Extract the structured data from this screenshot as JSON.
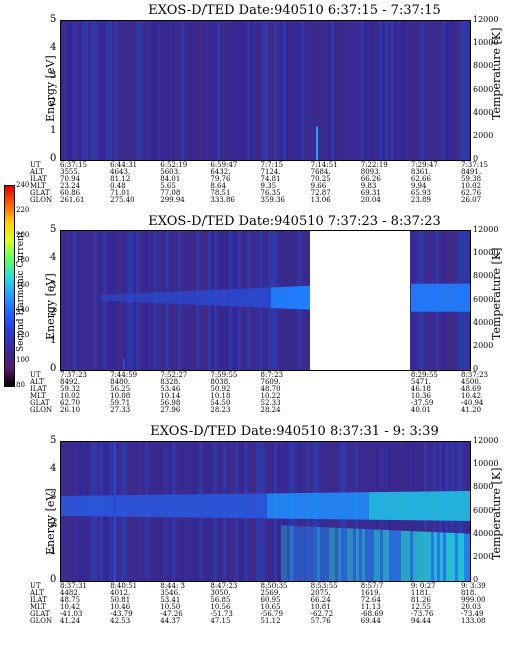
{
  "chart_data": [
    {
      "type": "heatmap",
      "title": "EXOS-D/TED  Date:940510  6:37:15 - 7:37:15",
      "ylabel": "Energy [eV]",
      "y2label": "Temperature [K]",
      "yticks": [
        "0",
        "1",
        "2",
        "3",
        "4",
        "5"
      ],
      "y2ticks": [
        "0",
        "2000",
        "4000",
        "6000",
        "8000",
        "10000",
        "12000"
      ],
      "ylim": [
        0,
        5
      ],
      "y2lim": [
        0,
        12000
      ],
      "band_center_ev": null,
      "table": {
        "labels": [
          "UT",
          "ALT",
          "ILAT",
          "MLT",
          "GLAT",
          "GLON"
        ],
        "columns": [
          [
            "6:37:15",
            "3555.",
            "70.94",
            "23.24",
            "60.86",
            "261.61"
          ],
          [
            "6:44:31",
            "4643.",
            "81.12",
            "0.48",
            "71.01",
            "275.40"
          ],
          [
            "6:52:19",
            "5603.",
            "84.01",
            "5.65",
            "77.08",
            "299.94"
          ],
          [
            "6:59:47",
            "6432.",
            "79.76",
            "8.64",
            "78.51",
            "333.86"
          ],
          [
            "7:7:15",
            "7124.",
            "74.81",
            "9.35",
            "76.35",
            "359.36"
          ],
          [
            "7:14:51",
            "7684.",
            "70.25",
            "9.66",
            "72.87",
            "13.06"
          ],
          [
            "7:22:19",
            "8093.",
            "66.26",
            "9.83",
            "69.31",
            "20.04"
          ],
          [
            "7:29:47",
            "8361.",
            "62.66",
            "9.94",
            "65.93",
            "23.89"
          ],
          [
            "7:37:15",
            "8491.",
            "59.38",
            "10.02",
            "62.76",
            "26.07"
          ]
        ]
      }
    },
    {
      "type": "heatmap",
      "title": "EXOS-D/TED  Date:940510  7:37:23 - 8:37:23",
      "ylabel": "Energy [eV]",
      "y2label": "Temperature [K]",
      "yticks": [
        "0",
        "1",
        "2",
        "3",
        "4",
        "5"
      ],
      "y2ticks": [
        "0",
        "2000",
        "4000",
        "6000",
        "8000",
        "10000",
        "12000"
      ],
      "ylim": [
        0,
        5
      ],
      "y2lim": [
        0,
        12000
      ],
      "data_gap": [
        "8:7:23",
        "8:29:55"
      ],
      "band_center_ev": 2.6,
      "table": {
        "labels": [
          "UT",
          "ALT",
          "ILAT",
          "MLT",
          "GLAT",
          "GLON"
        ],
        "columns": [
          [
            "7:37:23",
            "8492.",
            "59.32",
            "10.02",
            "62.70",
            "26.10"
          ],
          [
            "7:44:59",
            "8480.",
            "56.25",
            "10.08",
            "59.71",
            "27.33"
          ],
          [
            "7:52:27",
            "8328.",
            "53.46",
            "10.14",
            "56.98",
            "27.96"
          ],
          [
            "7:59:55",
            "8038.",
            "50.92",
            "10.18",
            "54.50",
            "28.23"
          ],
          [
            "8:7:23",
            "7609.",
            "48.70",
            "10.22",
            "52.33",
            "28.24"
          ],
          [
            "8:29:55",
            "5471.",
            "46.18",
            "10.36",
            "-37.59",
            "40.01"
          ],
          [
            "8:37:23",
            "4500.",
            "48.69",
            "10.42",
            "-40.94",
            "41.20"
          ]
        ]
      }
    },
    {
      "type": "heatmap",
      "title": "EXOS-D/TED  Date:940510  8:37:31 - 9: 3:39",
      "ylabel": "Energy [eV]",
      "y2label": "Temperature [K]",
      "yticks": [
        "0",
        "1",
        "2",
        "3",
        "4",
        "5"
      ],
      "y2ticks": [
        "0",
        "2000",
        "4000",
        "6000",
        "8000",
        "10000",
        "12000"
      ],
      "ylim": [
        0,
        5
      ],
      "y2lim": [
        0,
        12000
      ],
      "band_center_ev": 2.7,
      "table": {
        "labels": [
          "UT",
          "ALT",
          "ILAT",
          "MLT",
          "GLAT",
          "GLON"
        ],
        "columns": [
          [
            "8:37:31",
            "4482.",
            "48.75",
            "10.42",
            "-41.03",
            "41.24"
          ],
          [
            "8:40:51",
            "4012.",
            "50.81",
            "10.46",
            "-43.79",
            "42.53"
          ],
          [
            "8:44: 3",
            "3546.",
            "53.41",
            "10.50",
            "-47.26",
            "44.37"
          ],
          [
            "8:47:23",
            "3050.",
            "56.85",
            "10.56",
            "-51.73",
            "47.15"
          ],
          [
            "8:50:35",
            "2569.",
            "60.95",
            "10.65",
            "-56.79",
            "51.12"
          ],
          [
            "8:53:55",
            "2075.",
            "66.24",
            "10.81",
            "-62.72",
            "57.76"
          ],
          [
            "8:57:7",
            "1619.",
            "72.64",
            "11.13",
            "-68.69",
            "69.44"
          ],
          [
            "9: 0:27",
            "1181.",
            "81.26",
            "12.55",
            "-73.76",
            "94.44"
          ],
          [
            "9: 3:39",
            "818.",
            "999.00",
            "20.03",
            "-73.49",
            "133.08"
          ]
        ]
      }
    }
  ],
  "colorbar": {
    "label": "Second Harmonic Current",
    "ticks": [
      "80",
      "100",
      "120",
      "140",
      "160",
      "180",
      "200",
      "220",
      "240"
    ],
    "colors": [
      "#000000",
      "#5a1a6a",
      "#3a2a9a",
      "#2a3ad0",
      "#2060ff",
      "#20a0ff",
      "#20e0e0",
      "#60ff60",
      "#e0ff20",
      "#ffd000",
      "#ff6000",
      "#e00000"
    ]
  }
}
